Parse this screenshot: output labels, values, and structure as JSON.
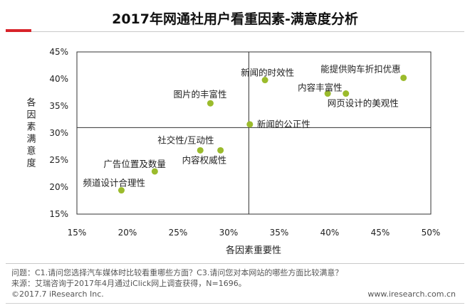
{
  "title": "2017年网通社用户看重因素-满意度分析",
  "chart_data": {
    "type": "scatter",
    "xlabel": "各因素重要性",
    "ylabel": "各因素满意度",
    "xlim": [
      15,
      50
    ],
    "ylim": [
      15,
      45
    ],
    "x_ticks": [
      "15%",
      "20%",
      "25%",
      "30%",
      "35%",
      "40%",
      "45%",
      "50%"
    ],
    "y_ticks": [
      "45%",
      "40%",
      "35%",
      "30%",
      "25%",
      "20%",
      "15%"
    ],
    "divider_x": 32,
    "divider_y": 31,
    "point_color": "#9bbb2c",
    "points": [
      {
        "label": "能提供购车折扣优惠",
        "x": 47.3,
        "y": 40.2
      },
      {
        "label": "新闻的时效性",
        "x": 33.6,
        "y": 39.8
      },
      {
        "label": "内容丰富性",
        "x": 39.8,
        "y": 37.3
      },
      {
        "label": "网页设计的美观性",
        "x": 41.6,
        "y": 37.3
      },
      {
        "label": "图片的丰富性",
        "x": 28.2,
        "y": 35.5
      },
      {
        "label": "新闻的公正性",
        "x": 32.1,
        "y": 31.6
      },
      {
        "label": "社交性/互动性",
        "x": 27.2,
        "y": 26.8
      },
      {
        "label": "内容权威性",
        "x": 29.2,
        "y": 26.8
      },
      {
        "label": "广告位置及数量",
        "x": 22.7,
        "y": 22.9
      },
      {
        "label": "频道设计合理性",
        "x": 19.4,
        "y": 19.4
      }
    ]
  },
  "notes": {
    "question": "问题：C1.请问您选择汽车媒体时比较看重哪些方面？C3.请问您对本网站的哪些方面比较满意？",
    "source": "来源：艾瑞咨询于2017年4月通过iClick网上调查获得，N=1696。"
  },
  "footer": {
    "copyright": "©2017.7 iResearch Inc.",
    "site": "www.iresearch.com.cn"
  }
}
